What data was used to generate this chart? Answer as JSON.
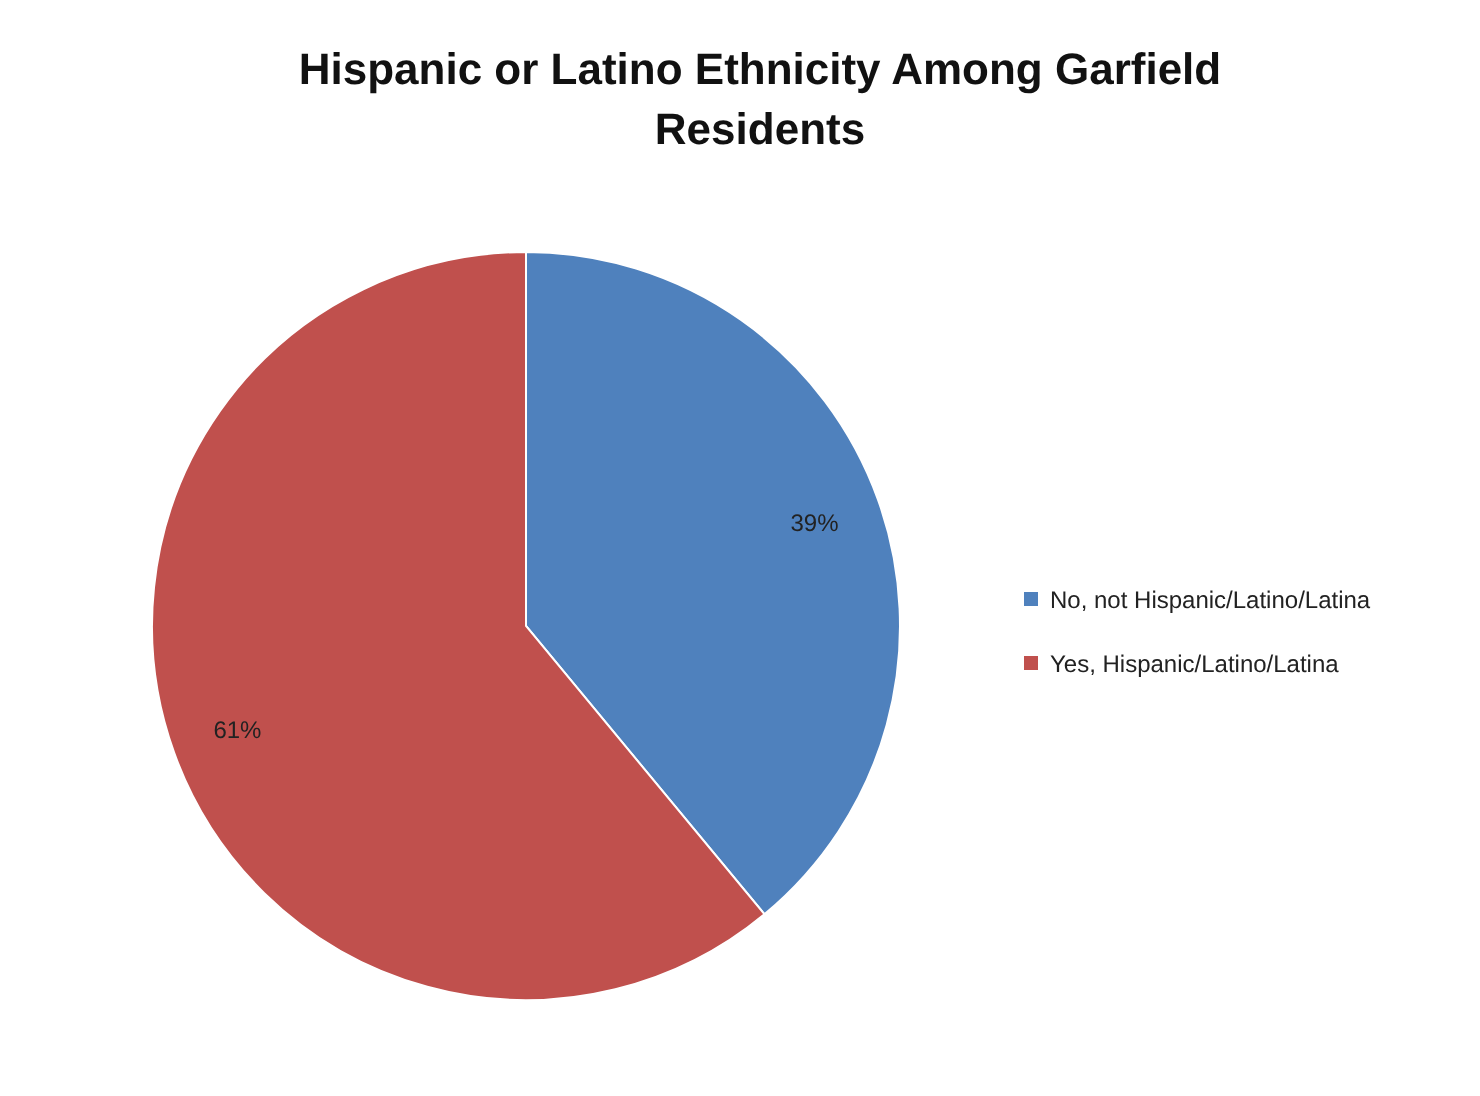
{
  "chart_data": {
    "type": "pie",
    "title": "Hispanic or Latino Ethnicity Among Garfield Residents",
    "categories": [
      "No, not Hispanic/Latino/Latina",
      "Yes, Hispanic/Latino/Latina"
    ],
    "values": [
      39,
      61
    ],
    "colors": [
      "#4f81bd",
      "#c0504d"
    ],
    "value_labels": [
      "39%",
      "61%"
    ],
    "legend": "right"
  }
}
